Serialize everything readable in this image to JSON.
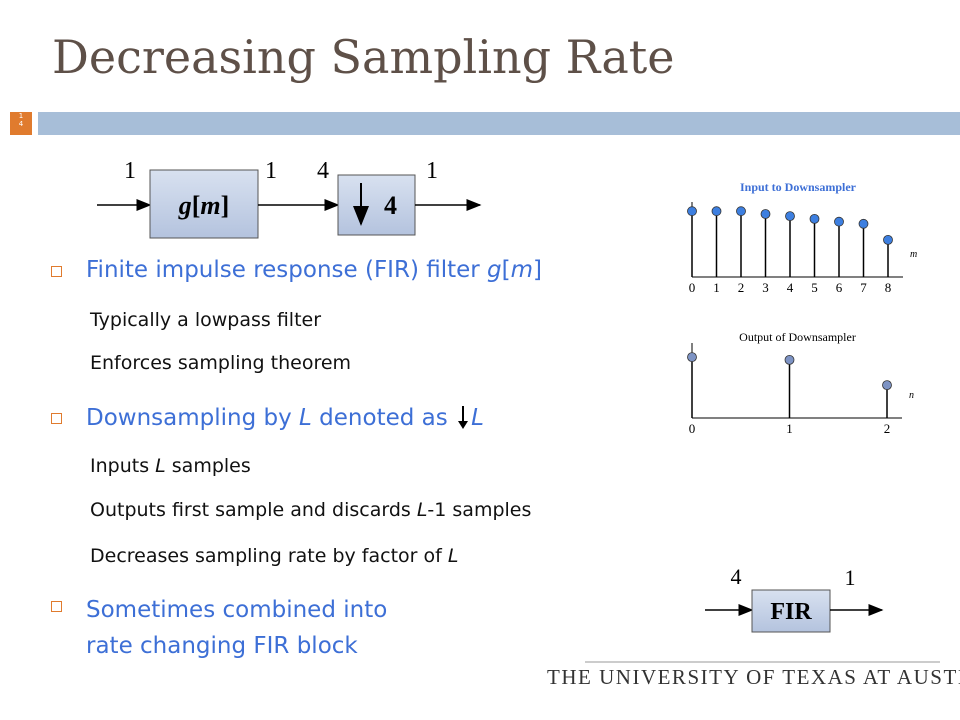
{
  "title": "Decreasing Sampling Rate",
  "slide_number": "14",
  "block_diagram": {
    "filter_label": [
      "g",
      "[",
      "m",
      "]"
    ],
    "downsample_factor": "4",
    "rates": [
      "1",
      "1",
      "4",
      "1"
    ]
  },
  "bullets": [
    {
      "runs": [
        "Finite impulse response (FIR) filter ",
        "g",
        "[",
        "m",
        "]"
      ],
      "sub": [
        [
          "Typically a lowpass filter"
        ],
        [
          "Enforces sampling theorem"
        ]
      ]
    },
    {
      "runs": [
        "Downsampling by ",
        "L",
        " denoted as ",
        "L"
      ],
      "sub": [
        [
          "Inputs ",
          "L",
          " samples"
        ],
        [
          "Outputs first sample and discards ",
          "L",
          "-1 samples"
        ],
        [
          "Decreases sampling rate by factor of ",
          "L"
        ]
      ]
    },
    {
      "lines": [
        "Sometimes combined into",
        "rate changing FIR block"
      ]
    }
  ],
  "input_plot": {
    "title": "Input to Downsampler",
    "axis_label": "m",
    "x": [
      0,
      1,
      2,
      3,
      4,
      5,
      6,
      7,
      8
    ],
    "values": [
      0.94,
      0.94,
      0.94,
      0.9,
      0.87,
      0.83,
      0.79,
      0.76,
      0.53
    ]
  },
  "output_plot": {
    "title": "Output of Downsampler",
    "axis_label": "n",
    "x": [
      0,
      1,
      2
    ],
    "values": [
      0.87,
      0.83,
      0.47
    ]
  },
  "fir_block": {
    "label": "FIR",
    "rates": [
      "4",
      "1"
    ]
  },
  "footer": "THE UNIVERSITY OF TEXAS AT AUSTIN"
}
